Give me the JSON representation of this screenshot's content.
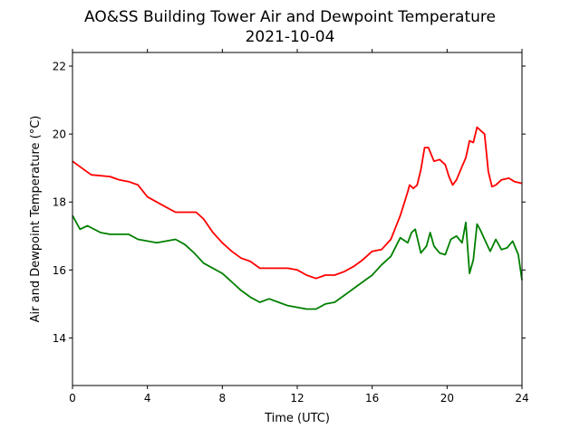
{
  "chart_data": {
    "type": "line",
    "title": "AO&SS Building Tower Air and Dewpoint Temperature",
    "subtitle": "2021-10-04",
    "xlabel": "Time (UTC)",
    "ylabel": "Air and Dewpoint Temperature (°C)",
    "xlim": [
      0,
      24
    ],
    "ylim": [
      12.6,
      22.4
    ],
    "xticks": [
      0,
      4,
      8,
      12,
      16,
      20,
      24
    ],
    "yticks": [
      14,
      16,
      18,
      20,
      22
    ],
    "grid": false,
    "series": [
      {
        "color": "#ff0000",
        "x": [
          0,
          0.5,
          1,
          2,
          2.5,
          3,
          3.5,
          4,
          5,
          5.5,
          6,
          6.6,
          7,
          7.5,
          8,
          8.5,
          9,
          9.5,
          10,
          10.5,
          11,
          11.5,
          12,
          12.5,
          13,
          13.5,
          14,
          14.5,
          15,
          15.5,
          16,
          16.5,
          17,
          17.5,
          17.9,
          18,
          18.2,
          18.4,
          18.6,
          18.8,
          19,
          19.3,
          19.6,
          19.9,
          20.1,
          20.3,
          20.5,
          20.8,
          21,
          21.2,
          21.4,
          21.6,
          21.8,
          22,
          22.2,
          22.4,
          22.6,
          22.9,
          23.3,
          23.6,
          24
        ],
        "values": [
          19.2,
          19.0,
          18.8,
          18.75,
          18.65,
          18.6,
          18.5,
          18.15,
          17.85,
          17.7,
          17.7,
          17.7,
          17.5,
          17.1,
          16.8,
          16.55,
          16.35,
          16.25,
          16.05,
          16.05,
          16.05,
          16.05,
          16.0,
          15.85,
          15.75,
          15.85,
          15.85,
          15.95,
          16.1,
          16.3,
          16.55,
          16.6,
          16.9,
          17.6,
          18.3,
          18.5,
          18.4,
          18.5,
          18.95,
          19.6,
          19.6,
          19.2,
          19.25,
          19.1,
          18.75,
          18.5,
          18.65,
          19.05,
          19.3,
          19.8,
          19.75,
          20.2,
          20.1,
          20.0,
          18.9,
          18.45,
          18.5,
          18.65,
          18.7,
          18.6,
          18.55
        ]
      },
      {
        "color": "#008000",
        "x": [
          0,
          0.4,
          0.8,
          1.5,
          2,
          3,
          3.5,
          4,
          4.5,
          5,
          5.5,
          6,
          6.5,
          7,
          7.5,
          8,
          8.5,
          9,
          9.5,
          10,
          10.5,
          11,
          11.5,
          12,
          12.5,
          13,
          13.5,
          14,
          14.5,
          15,
          15.5,
          16,
          16.5,
          17,
          17.5,
          17.9,
          18.1,
          18.3,
          18.6,
          18.9,
          19.1,
          19.3,
          19.6,
          19.9,
          20.2,
          20.5,
          20.8,
          21,
          21.2,
          21.4,
          21.6,
          21.8,
          22,
          22.3,
          22.6,
          22.9,
          23.2,
          23.5,
          23.8,
          24
        ],
        "values": [
          17.6,
          17.2,
          17.3,
          17.1,
          17.05,
          17.05,
          16.9,
          16.85,
          16.8,
          16.85,
          16.9,
          16.75,
          16.5,
          16.2,
          16.05,
          15.9,
          15.65,
          15.4,
          15.2,
          15.05,
          15.15,
          15.05,
          14.95,
          14.9,
          14.85,
          14.85,
          15.0,
          15.05,
          15.25,
          15.45,
          15.65,
          15.85,
          16.15,
          16.4,
          16.95,
          16.8,
          17.1,
          17.2,
          16.5,
          16.7,
          17.1,
          16.7,
          16.5,
          16.45,
          16.9,
          17.0,
          16.8,
          17.4,
          15.9,
          16.3,
          17.35,
          17.15,
          16.9,
          16.55,
          16.9,
          16.6,
          16.65,
          16.85,
          16.45,
          15.7
        ]
      }
    ]
  }
}
